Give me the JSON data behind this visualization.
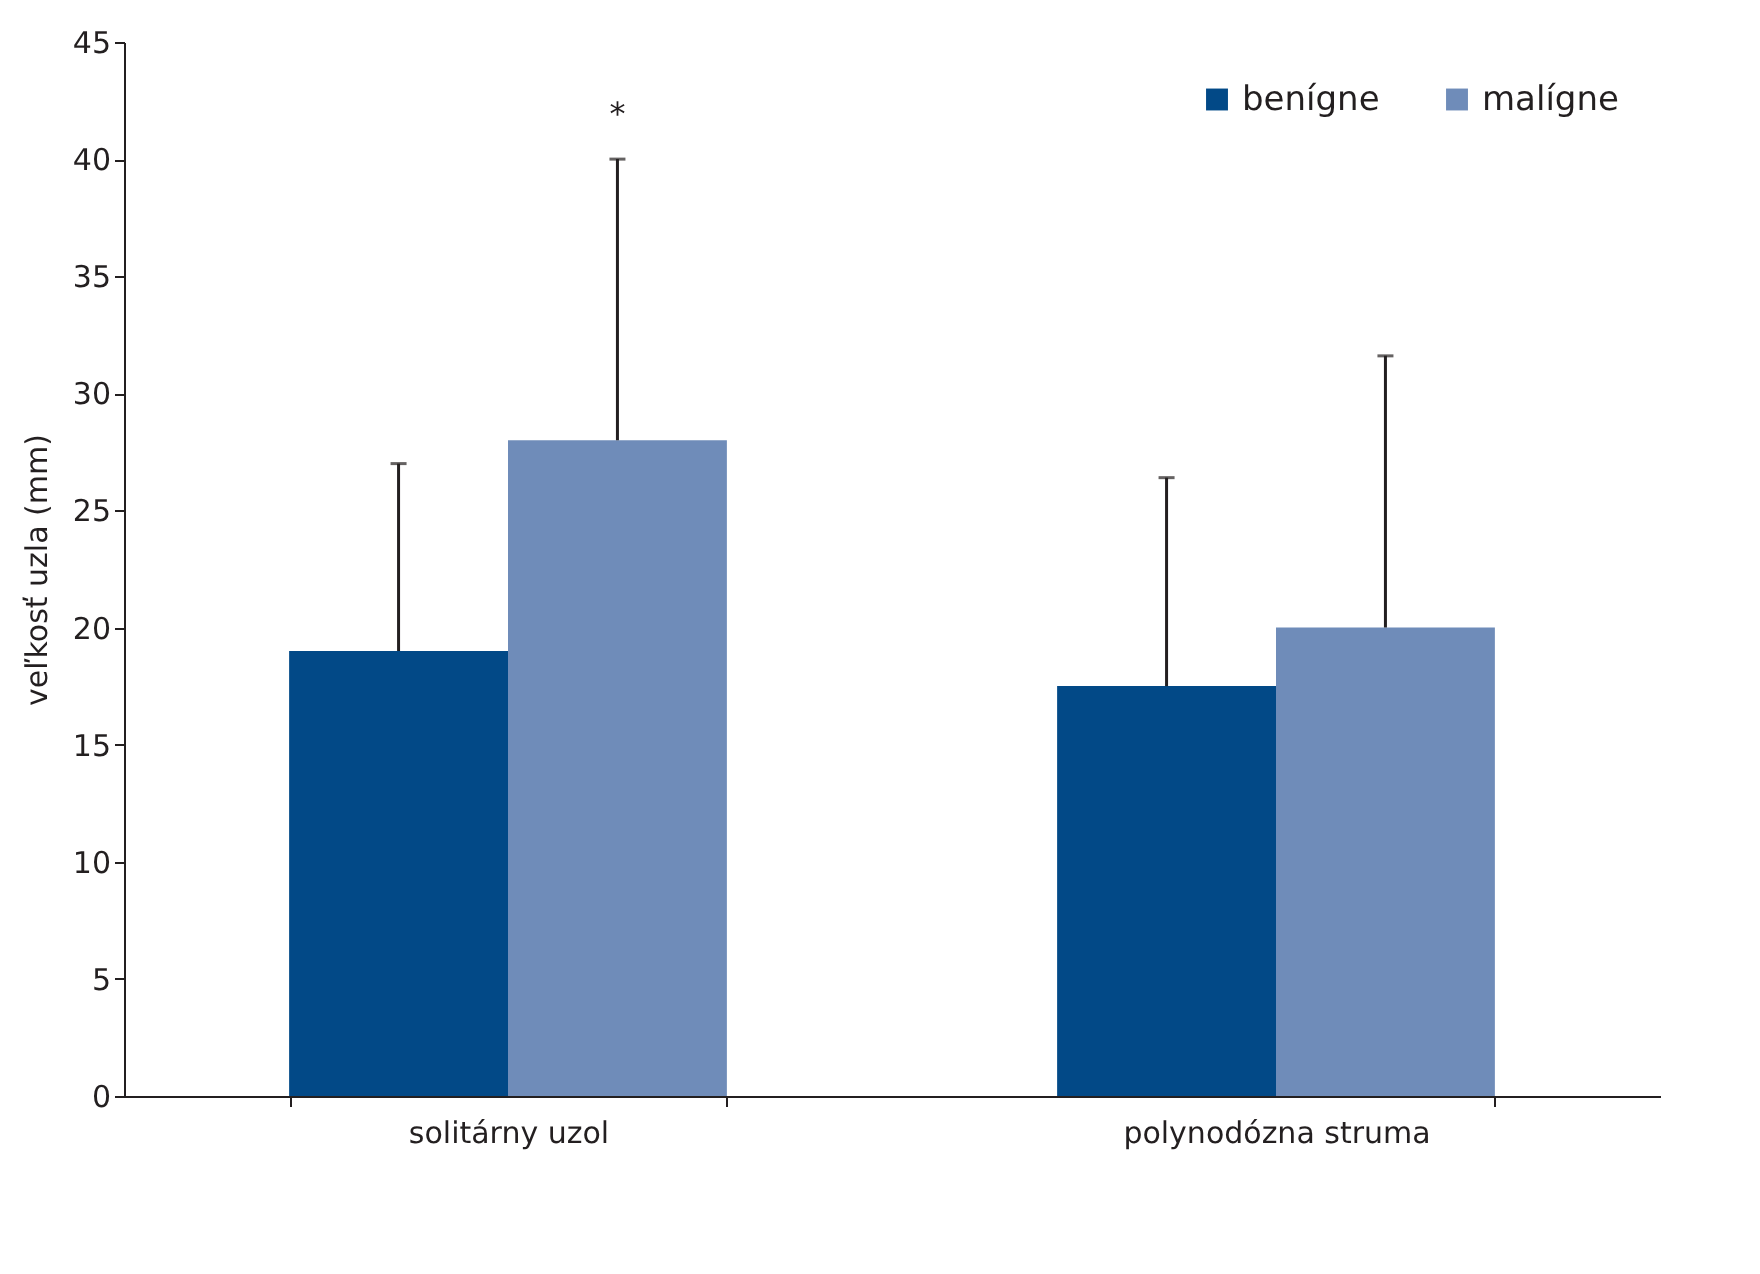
{
  "chart_data": {
    "type": "bar",
    "ylabel": "veľkosť uzla (mm)",
    "categories": [
      "solitárny uzol",
      "polynodózna struma"
    ],
    "series": [
      {
        "name": "benígne",
        "color": "#024987",
        "values": [
          19,
          17.5
        ],
        "errors": [
          [
            19,
            27
          ],
          [
            17.5,
            26.4
          ]
        ]
      },
      {
        "name": "malígne",
        "color": "#6f8cb9",
        "values": [
          28,
          20
        ],
        "errors": [
          [
            28,
            40
          ],
          [
            20,
            31.6
          ]
        ]
      }
    ],
    "ylim": [
      0,
      45
    ],
    "yticks": [
      0,
      5,
      10,
      15,
      20,
      25,
      30,
      35,
      40,
      45
    ],
    "grid": false,
    "legend": "top right",
    "annotations": [
      "*"
    ]
  }
}
